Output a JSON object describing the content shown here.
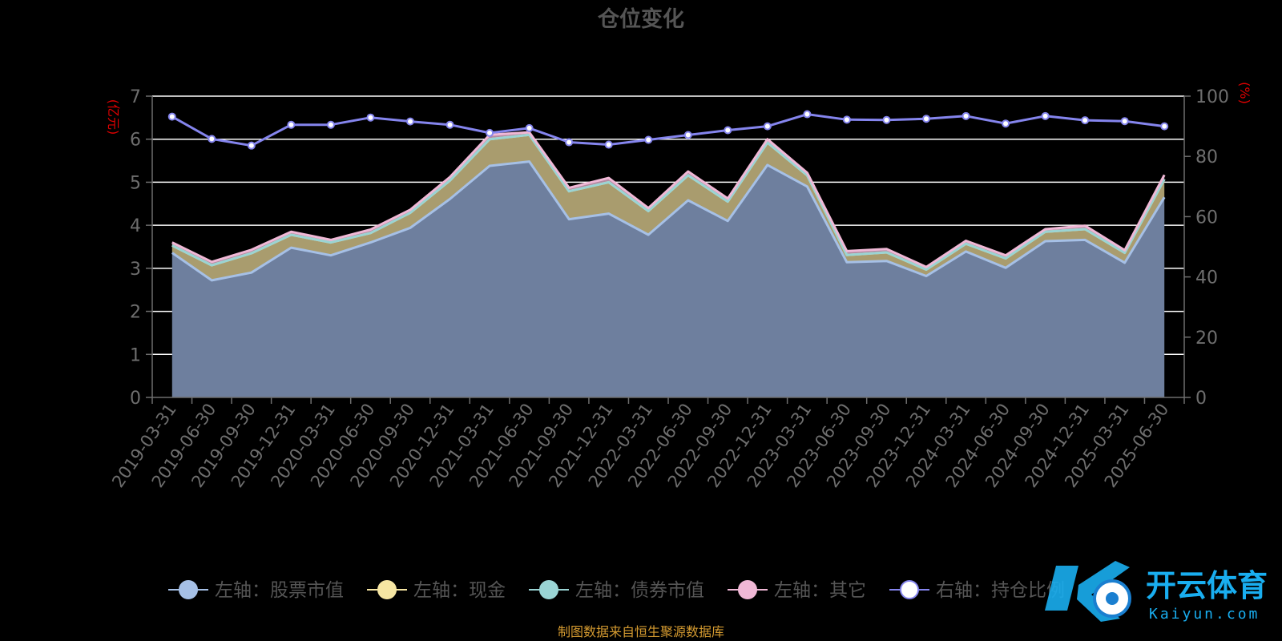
{
  "chart_data": {
    "type": "area",
    "title": "仓位变化",
    "y_left_unit": "(亿元)",
    "y_right_unit": "(%)",
    "ylim_left": [
      0,
      7
    ],
    "ylim_right": [
      0,
      100
    ],
    "y_left_ticks": [
      "0",
      "1",
      "2",
      "3",
      "4",
      "5",
      "6",
      "7"
    ],
    "y_right_ticks": [
      "0",
      "20",
      "40",
      "60",
      "80",
      "100"
    ],
    "categories": [
      "2019-03-31",
      "2019-06-30",
      "2019-09-30",
      "2019-12-31",
      "2020-03-31",
      "2020-06-30",
      "2020-09-30",
      "2020-12-31",
      "2021-03-31",
      "2021-06-30",
      "2021-09-30",
      "2021-12-31",
      "2022-03-31",
      "2022-06-30",
      "2022-09-30",
      "2022-12-31",
      "2023-03-31",
      "2023-06-30",
      "2023-09-30",
      "2023-12-31",
      "2024-03-31",
      "2024-06-30",
      "2024-09-30",
      "2024-12-31",
      "2025-03-31",
      "2025-06-30"
    ],
    "series": [
      {
        "name": "左轴：股票市值",
        "axis": "left",
        "stack": true,
        "color": "#a6c0e6",
        "fill": "#6e7f9e",
        "values": [
          3.36,
          2.72,
          2.9,
          3.48,
          3.3,
          3.6,
          3.94,
          4.61,
          5.38,
          5.48,
          4.14,
          4.27,
          3.78,
          4.58,
          4.1,
          5.4,
          4.9,
          3.14,
          3.17,
          2.82,
          3.39,
          3.01,
          3.63,
          3.66,
          3.13,
          4.65
        ]
      },
      {
        "name": "左轴：现金",
        "axis": "left",
        "stack": true,
        "color": "#f6e6a3",
        "fill": "#a99c6e",
        "values": [
          0.17,
          0.35,
          0.45,
          0.3,
          0.3,
          0.22,
          0.35,
          0.43,
          0.62,
          0.62,
          0.65,
          0.73,
          0.55,
          0.58,
          0.45,
          0.52,
          0.26,
          0.17,
          0.2,
          0.15,
          0.18,
          0.22,
          0.22,
          0.25,
          0.23,
          0.42
        ]
      },
      {
        "name": "左轴：债券市值",
        "axis": "left",
        "stack": true,
        "color": "#9ad4d4",
        "fill": "#7fa8a8",
        "values": [
          0,
          0,
          0,
          0,
          0,
          0,
          0,
          0,
          0,
          0,
          0,
          0,
          0,
          0,
          0,
          0,
          0,
          0,
          0,
          0,
          0,
          0,
          0,
          0,
          0,
          0
        ]
      },
      {
        "name": "左轴：其它",
        "axis": "left",
        "stack": true,
        "color": "#f0b8d6",
        "fill": "#b48aa2",
        "values": [
          0.07,
          0.08,
          0.08,
          0.07,
          0.06,
          0.08,
          0.07,
          0.08,
          0.1,
          0.06,
          0.08,
          0.1,
          0.07,
          0.09,
          0.07,
          0.08,
          0.06,
          0.09,
          0.08,
          0.06,
          0.07,
          0.07,
          0.06,
          0.08,
          0.06,
          0.1
        ]
      },
      {
        "name": "右轴：持仓比例",
        "axis": "right",
        "stack": false,
        "color": "#8585ee",
        "values": [
          93.2,
          85.8,
          83.6,
          90.5,
          90.5,
          92.9,
          91.6,
          90.5,
          87.8,
          89.4,
          84.7,
          83.9,
          85.5,
          87.1,
          88.7,
          90.0,
          94.0,
          92.2,
          92.1,
          92.5,
          93.4,
          90.9,
          93.4,
          92.0,
          91.7,
          90.0
        ]
      }
    ],
    "legend_position": "bottom",
    "grid": true
  },
  "footer_note": "制图数据来自恒生聚源数据库",
  "watermark": {
    "brand_cn": "开云体育",
    "brand_en": "Kaiyun.com"
  },
  "colors": {
    "background": "#000000",
    "title": "#555555",
    "axis_text": "#6e6e6e",
    "unit_text": "#e00000",
    "gridline": "#ffffff",
    "footer": "#d49a30",
    "watermark": "#19aef0"
  }
}
